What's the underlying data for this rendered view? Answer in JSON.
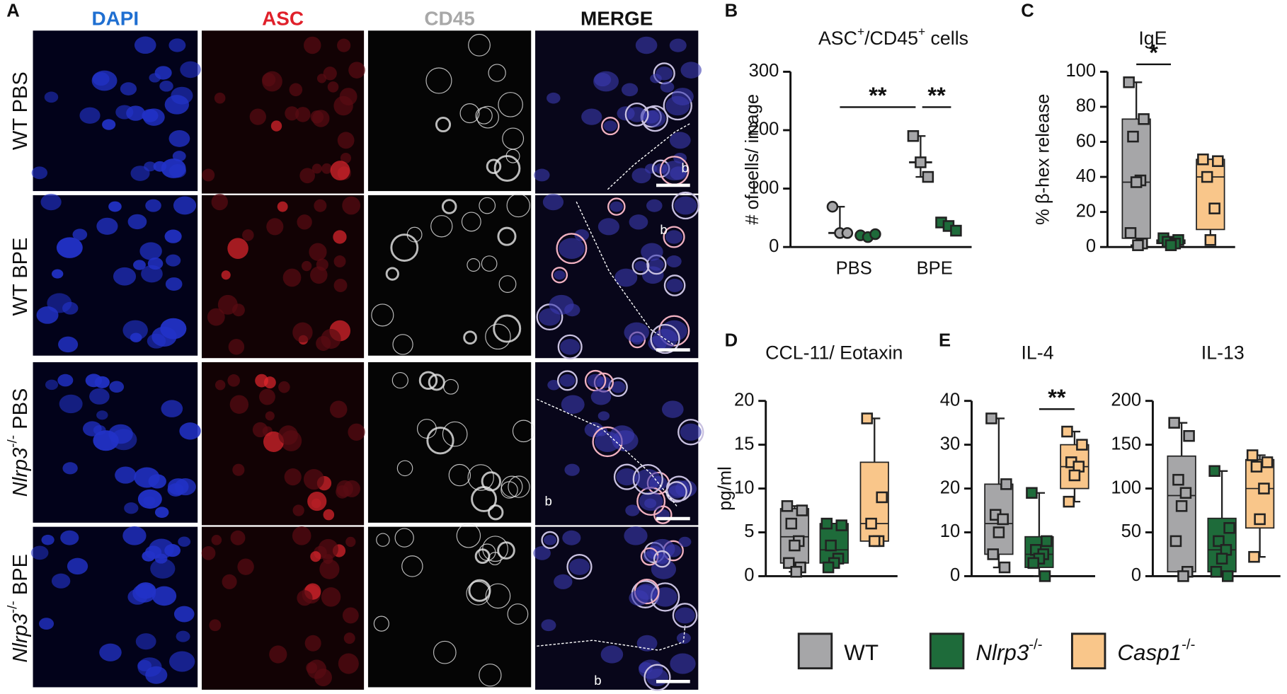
{
  "panel_labels": [
    "A",
    "B",
    "C",
    "D",
    "E"
  ],
  "figure_a": {
    "columns": [
      {
        "text": "DAPI",
        "color": "#1f6fd1"
      },
      {
        "text": "ASC",
        "color": "#e0202a"
      },
      {
        "text": "CD45",
        "color": "#a8a8a8"
      },
      {
        "text": "MERGE",
        "color": "#111111"
      }
    ],
    "rows": [
      {
        "parts": [
          {
            "text": "WT PBS",
            "style": "normal"
          }
        ]
      },
      {
        "parts": [
          {
            "text": "WT BPE",
            "style": "normal"
          }
        ]
      },
      {
        "parts": [
          {
            "text": "Nlrp3",
            "style": "italic"
          },
          {
            "text": "-/-",
            "style": "sup"
          },
          {
            "text": " PBS",
            "style": "normal"
          }
        ]
      },
      {
        "parts": [
          {
            "text": "Nlrp3",
            "style": "italic"
          },
          {
            "text": "-/-",
            "style": "sup"
          },
          {
            "text": " BPE",
            "style": "normal"
          }
        ]
      }
    ],
    "region_marks": [
      "b",
      "b",
      "b",
      "b"
    ]
  },
  "chart_data": [
    {
      "type": "dot",
      "title_parts": [
        {
          "text": "ASC",
          "style": "normal"
        },
        {
          "text": "+",
          "style": "sup"
        },
        {
          "text": "/CD45",
          "style": "normal"
        },
        {
          "text": "+",
          "style": "sup"
        },
        {
          "text": " cells",
          "style": "normal"
        }
      ],
      "ylabel": "# of cells/ image",
      "categories": [
        "PBS",
        "BPE"
      ],
      "markers": [
        "circle",
        "square"
      ],
      "ylim": [
        0,
        300
      ],
      "yticks": [
        0,
        100,
        200,
        300
      ],
      "series": [
        {
          "color": "#a6a6a8",
          "values": [
            [
              69,
              24,
              24
            ],
            [
              190,
              145,
              120
            ]
          ],
          "medians": [
            24,
            145
          ],
          "ranges": [
            [
              24,
              69
            ],
            [
              120,
              190
            ]
          ]
        },
        {
          "color": "#1e6b3a",
          "values": [
            [
              20,
              17,
              22
            ],
            [
              42,
              36,
              28
            ]
          ],
          "medians": [
            20,
            36
          ],
          "ranges": [
            [
              17,
              22
            ],
            [
              28,
              42
            ]
          ]
        }
      ],
      "significance": [
        {
          "label": "**"
        },
        {
          "label": "**"
        }
      ]
    },
    {
      "type": "box",
      "title": "IgE",
      "ylabel": "% β-hex release",
      "ylim": [
        0,
        100
      ],
      "yticks": [
        0,
        20,
        40,
        60,
        80,
        100
      ],
      "series": [
        {
          "color": "#a6a6a8",
          "min": 1,
          "q1": 5,
          "median": 37,
          "q3": 73,
          "max": 94,
          "points": [
            94,
            73,
            63,
            38,
            37,
            8,
            2,
            1
          ]
        },
        {
          "color": "#1e6b3a",
          "min": 1,
          "q1": 2,
          "median": 3,
          "q3": 4,
          "max": 5,
          "points": [
            5,
            4,
            3,
            2,
            1
          ]
        },
        {
          "color": "#f9c68a",
          "min": 4,
          "q1": 10,
          "median": 40,
          "q3": 50,
          "max": 50,
          "points": [
            50,
            49,
            40,
            22,
            4
          ]
        }
      ],
      "significance": [
        {
          "label": "*"
        }
      ]
    },
    {
      "type": "box",
      "title": "CCL-11/ Eotaxin",
      "ylabel": "pg/ml",
      "ylim": [
        0,
        20
      ],
      "yticks": [
        0,
        5,
        10,
        15,
        20
      ],
      "series": [
        {
          "color": "#a6a6a8",
          "min": 0.5,
          "q1": 1.5,
          "median": 4.5,
          "q3": 7.7,
          "max": 8,
          "points": [
            8,
            7.5,
            6,
            4,
            3.5,
            1.5,
            1,
            0.5
          ]
        },
        {
          "color": "#1e6b3a",
          "min": 1,
          "q1": 1.5,
          "median": 3,
          "q3": 6,
          "max": 6,
          "points": [
            6,
            5.8,
            3.5,
            2,
            1.5,
            1
          ]
        },
        {
          "color": "#f9c68a",
          "min": 4,
          "q1": 4,
          "median": 6,
          "q3": 13,
          "max": 18,
          "points": [
            18,
            9,
            6,
            4,
            4
          ]
        }
      ]
    },
    {
      "type": "box",
      "title": "IL-4",
      "ylim": [
        0,
        40
      ],
      "yticks": [
        0,
        10,
        20,
        30,
        40
      ],
      "series": [
        {
          "color": "#a6a6a8",
          "min": 2,
          "q1": 5,
          "median": 12,
          "q3": 21,
          "max": 36,
          "points": [
            36,
            21,
            14,
            13,
            10,
            5,
            2
          ]
        },
        {
          "color": "#1e6b3a",
          "min": 0,
          "q1": 2,
          "median": 5,
          "q3": 9,
          "max": 19,
          "points": [
            19,
            8,
            6,
            5,
            4,
            3,
            0
          ]
        },
        {
          "color": "#f9c68a",
          "min": 17,
          "q1": 20,
          "median": 25,
          "q3": 30,
          "max": 33,
          "points": [
            33,
            30,
            26,
            25,
            23,
            17
          ]
        }
      ],
      "significance": [
        {
          "label": "**"
        }
      ]
    },
    {
      "type": "box",
      "title": "IL-13",
      "ylim": [
        0,
        200
      ],
      "yticks": [
        0,
        50,
        100,
        150,
        200
      ],
      "series": [
        {
          "color": "#a6a6a8",
          "min": 0,
          "q1": 5,
          "median": 92,
          "q3": 137,
          "max": 175,
          "points": [
            175,
            160,
            110,
            95,
            80,
            40,
            5,
            0
          ]
        },
        {
          "color": "#1e6b3a",
          "min": 0,
          "q1": 5,
          "median": 30,
          "q3": 66,
          "max": 120,
          "points": [
            120,
            55,
            40,
            30,
            20,
            5,
            0
          ]
        },
        {
          "color": "#f9c68a",
          "min": 22,
          "q1": 55,
          "median": 100,
          "q3": 133,
          "max": 138,
          "points": [
            138,
            130,
            125,
            100,
            65,
            22
          ]
        }
      ]
    }
  ],
  "legend": [
    {
      "color": "#a6a6a8",
      "parts": [
        {
          "text": "WT",
          "style": "normal"
        }
      ]
    },
    {
      "color": "#1e6b3a",
      "parts": [
        {
          "text": "Nlrp3",
          "style": "italic"
        },
        {
          "text": "-/-",
          "style": "sup"
        }
      ]
    },
    {
      "color": "#f9c68a",
      "parts": [
        {
          "text": "Casp1",
          "style": "italic"
        },
        {
          "text": "-/-",
          "style": "sup"
        }
      ]
    }
  ]
}
